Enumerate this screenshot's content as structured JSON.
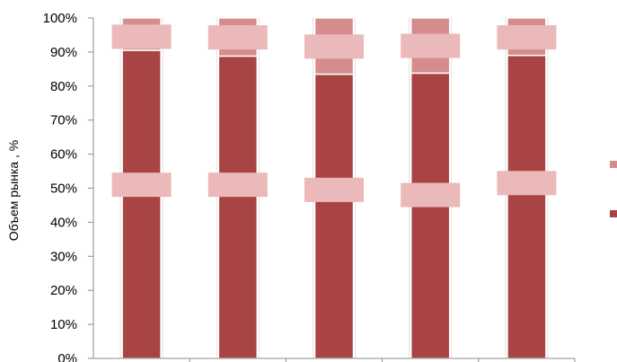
{
  "chart_data": {
    "type": "bar",
    "stacked": true,
    "percent": true,
    "ylabel": "Объем рынка , %",
    "ylim": [
      0,
      100
    ],
    "y_ticks": [
      "0%",
      "10%",
      "20%",
      "30%",
      "40%",
      "50%",
      "60%",
      "70%",
      "80%",
      "90%",
      "100%"
    ],
    "categories": [
      "",
      "",
      "",
      "",
      ""
    ],
    "series": [
      {
        "values": [
          90.5,
          88.8,
          83.5,
          83.8,
          89.0
        ],
        "color": "#a84444"
      },
      {
        "values": [
          9.5,
          11.2,
          16.5,
          16.2,
          11.0
        ],
        "color": "#d48c8c"
      }
    ],
    "labels_overlay": [
      {
        "bottom": [
          51,
          51,
          49.5,
          48,
          51.5
        ],
        "top": [
          94.5,
          94.3,
          91.6,
          91.8,
          94.3
        ]
      }
    ],
    "overlay_color": "#ebb9b9",
    "grid": false,
    "legend_placement": "right"
  }
}
